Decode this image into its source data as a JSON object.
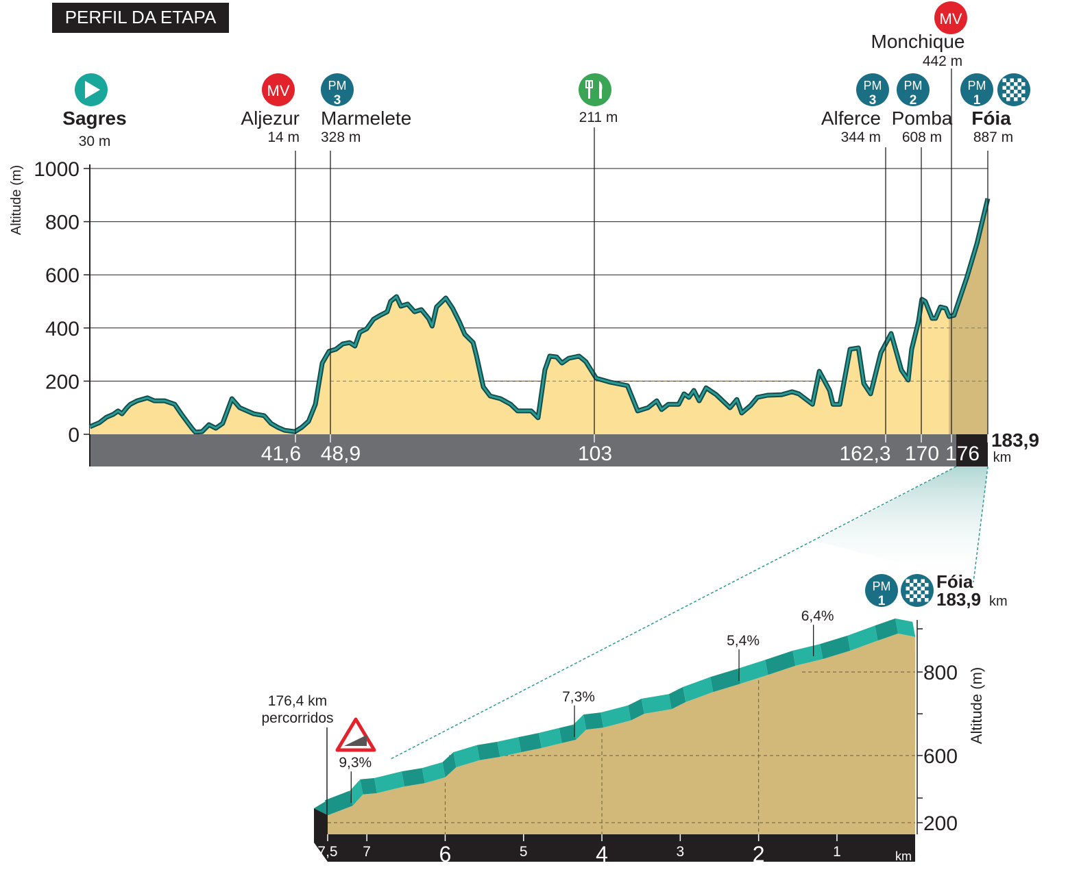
{
  "title": "PERFIL DA ETAPA",
  "colors": {
    "fill_main": "#fbe096",
    "fill_final": "#d5bb7b",
    "stroke_dark": "#124b4b",
    "stroke_teal": "#2a9a92",
    "bar_gray": "#6d6e71",
    "bar_black": "#231f20",
    "icon_teal": "#1a6f84",
    "icon_red": "#e3232c",
    "icon_green": "#3aa655",
    "detail_fill": "#d2b97a",
    "ribbon_dark": "#1a9486",
    "ribbon_light": "#27b3a1"
  },
  "waypoints": [
    {
      "name": "Sagres",
      "alt": "30 m",
      "icon": "start-flag-icon"
    },
    {
      "name": "Aljezur",
      "alt": "14 m",
      "icon": "MV",
      "km_label": "41,6"
    },
    {
      "name": "Marmelete",
      "alt": "328 m",
      "icon": "PM",
      "cat": "3",
      "km_label": "48,9"
    },
    {
      "name": "",
      "alt": "211 m",
      "icon": "food-icon",
      "km_label": "103"
    },
    {
      "name": "Alferce",
      "alt": "344 m",
      "icon": "PM",
      "cat": "3",
      "km_label": "162,3"
    },
    {
      "name": "Pomba",
      "alt": "608 m",
      "icon": "PM",
      "cat": "2",
      "km_label": "170"
    },
    {
      "name": "Monchique",
      "alt": "442 m",
      "icon": "MV",
      "km_label": "176"
    },
    {
      "name": "Fóia",
      "alt": "887 m",
      "icon": "PM",
      "cat": "1",
      "finish": true
    }
  ],
  "badges": {
    "mv": "MV",
    "pm": "PM"
  },
  "finish_km": "183,9",
  "km_unit": "km",
  "chart_data": [
    {
      "type": "area",
      "title": "PERFIL DA ETAPA",
      "xlabel": "km",
      "ylabel": "Altitude (m)",
      "xlim": [
        0,
        183.9
      ],
      "ylim": [
        0,
        1000
      ],
      "yticks": [
        "0",
        "200",
        "400",
        "600",
        "800",
        "1000"
      ],
      "grid": true,
      "profile": [
        [
          0,
          28
        ],
        [
          2,
          44
        ],
        [
          3.4,
          64
        ],
        [
          4.8,
          75
        ],
        [
          5.8,
          88
        ],
        [
          6.6,
          77
        ],
        [
          7.6,
          100
        ],
        [
          8.3,
          113
        ],
        [
          9.7,
          126
        ],
        [
          11.8,
          137
        ],
        [
          13.2,
          126
        ],
        [
          15.3,
          126
        ],
        [
          17.4,
          113
        ],
        [
          18.8,
          75
        ],
        [
          20.9,
          23
        ],
        [
          21.6,
          8
        ],
        [
          23,
          10
        ],
        [
          24.4,
          36
        ],
        [
          25.8,
          23
        ],
        [
          27.2,
          41
        ],
        [
          29.1,
          134
        ],
        [
          30.7,
          100
        ],
        [
          33.6,
          77
        ],
        [
          35.7,
          70
        ],
        [
          37.1,
          41
        ],
        [
          38.5,
          26
        ],
        [
          39.9,
          15
        ],
        [
          42,
          10
        ],
        [
          43.4,
          26
        ],
        [
          44.8,
          49
        ],
        [
          46.2,
          113
        ],
        [
          47.6,
          268
        ],
        [
          49,
          312
        ],
        [
          50.4,
          320
        ],
        [
          51.8,
          340
        ],
        [
          53.2,
          345
        ],
        [
          54.3,
          332
        ],
        [
          55.3,
          384
        ],
        [
          56.7,
          397
        ],
        [
          58.1,
          433
        ],
        [
          59.5,
          448
        ],
        [
          60.9,
          461
        ],
        [
          61.6,
          500
        ],
        [
          62.8,
          518
        ],
        [
          63.7,
          482
        ],
        [
          65.1,
          490
        ],
        [
          66.5,
          461
        ],
        [
          67.9,
          469
        ],
        [
          69.4,
          435
        ],
        [
          70.1,
          407
        ],
        [
          71,
          479
        ],
        [
          72.9,
          513
        ],
        [
          74.3,
          474
        ],
        [
          75.7,
          423
        ],
        [
          76.8,
          376
        ],
        [
          78.5,
          345
        ],
        [
          79.2,
          294
        ],
        [
          80.6,
          178
        ],
        [
          82,
          144
        ],
        [
          84.1,
          134
        ],
        [
          86.2,
          113
        ],
        [
          87.6,
          88
        ],
        [
          89,
          88
        ],
        [
          90.4,
          88
        ],
        [
          91.8,
          62
        ],
        [
          93.2,
          242
        ],
        [
          94.2,
          294
        ],
        [
          95.6,
          291
        ],
        [
          96.7,
          268
        ],
        [
          98.1,
          286
        ],
        [
          100.2,
          294
        ],
        [
          101.6,
          273
        ],
        [
          103.7,
          211
        ],
        [
          106.6,
          196
        ],
        [
          110.1,
          183
        ],
        [
          112.2,
          88
        ],
        [
          114.3,
          100
        ],
        [
          116.1,
          126
        ],
        [
          117.1,
          93
        ],
        [
          118.5,
          113
        ],
        [
          120.6,
          113
        ],
        [
          121.7,
          152
        ],
        [
          122.7,
          139
        ],
        [
          123.7,
          165
        ],
        [
          124.8,
          126
        ],
        [
          126.2,
          175
        ],
        [
          128.3,
          149
        ],
        [
          131.1,
          100
        ],
        [
          132.5,
          131
        ],
        [
          133.5,
          80
        ],
        [
          135.3,
          108
        ],
        [
          136.7,
          139
        ],
        [
          138.8,
          147
        ],
        [
          141.7,
          149
        ],
        [
          143.8,
          160
        ],
        [
          145.2,
          152
        ],
        [
          148,
          113
        ],
        [
          149.4,
          237
        ],
        [
          151.5,
          165
        ],
        [
          152.2,
          113
        ],
        [
          153.6,
          113
        ],
        [
          155.7,
          320
        ],
        [
          157.4,
          325
        ],
        [
          158.5,
          191
        ],
        [
          159.9,
          152
        ],
        [
          162,
          307
        ],
        [
          164.1,
          379
        ],
        [
          166.2,
          242
        ],
        [
          167.6,
          204
        ],
        [
          168.3,
          320
        ],
        [
          169.7,
          423
        ],
        [
          170.4,
          508
        ],
        [
          171.1,
          500
        ],
        [
          172.5,
          436
        ],
        [
          173.2,
          436
        ],
        [
          174.2,
          479
        ],
        [
          175.3,
          474
        ],
        [
          176,
          443
        ],
        [
          177,
          448
        ],
        [
          179.6,
          590
        ],
        [
          181.7,
          719
        ],
        [
          183.9,
          887
        ]
      ],
      "final_segment_start_km": 176
    },
    {
      "type": "area",
      "title": "Fóia",
      "subtitle": "183,9",
      "xlabel": "km",
      "ylabel": "Altitude (m)",
      "x_unit": "km to go",
      "xticks": [
        "7,5",
        "7",
        "6",
        "5",
        "4",
        "3",
        "2",
        "1"
      ],
      "xtick_values": [
        7.5,
        7,
        6,
        5,
        4,
        3,
        2,
        1
      ],
      "yticks": [
        "200",
        "600",
        "800"
      ],
      "ytick_values": [
        200,
        600,
        800
      ],
      "start_note": [
        "176,4 km",
        "percorridos"
      ],
      "profile": [
        [
          7.5,
          457
        ],
        [
          7.18,
          480
        ],
        [
          7.05,
          507
        ],
        [
          6.87,
          510
        ],
        [
          6.52,
          526
        ],
        [
          6.26,
          534
        ],
        [
          6,
          548
        ],
        [
          5.86,
          572
        ],
        [
          5.56,
          589
        ],
        [
          5.3,
          597
        ],
        [
          5.03,
          608
        ],
        [
          4.77,
          618
        ],
        [
          4.51,
          630
        ],
        [
          4.33,
          638
        ],
        [
          4.2,
          662
        ],
        [
          3.98,
          667
        ],
        [
          3.63,
          684
        ],
        [
          3.46,
          700
        ],
        [
          3.11,
          711
        ],
        [
          2.93,
          728
        ],
        [
          2.58,
          752
        ],
        [
          2.23,
          772
        ],
        [
          1.88,
          793
        ],
        [
          1.53,
          815
        ],
        [
          1.18,
          831
        ],
        [
          0.83,
          851
        ],
        [
          0.48,
          875
        ],
        [
          0.22,
          892
        ],
        [
          0,
          884
        ]
      ],
      "gradients": [
        {
          "km": 7.2,
          "label": "9,3%",
          "max": true
        },
        {
          "km": 4.35,
          "label": "7,3%"
        },
        {
          "km": 2.25,
          "label": "5,4%"
        },
        {
          "km": 1.3,
          "label": "6,4%"
        }
      ]
    }
  ]
}
